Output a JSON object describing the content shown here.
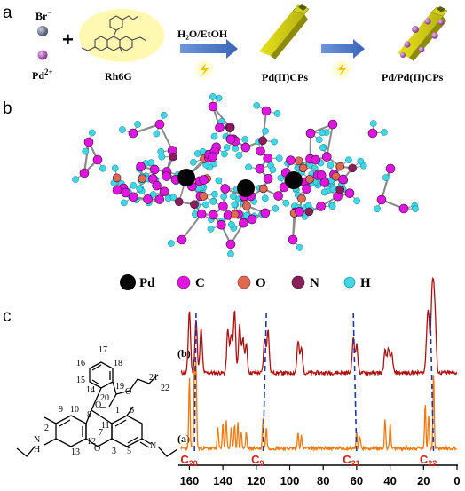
{
  "panels": {
    "a": {
      "letter": "a",
      "br_label": "Br",
      "br_charge": "−",
      "pd_label": "Pd",
      "pd_charge": "2+",
      "plus": "+",
      "rh6g_label": "Rh6G",
      "solvent_label": "H₂O/EtOH",
      "product1_label": "Pd(II)CPs",
      "product2_label": "Pd/Pd(II)CPs"
    },
    "b": {
      "letter": "b",
      "legend": [
        {
          "symbol": "Pd",
          "color": "#050505"
        },
        {
          "symbol": "C",
          "color": "#e016e0"
        },
        {
          "symbol": "O",
          "color": "#e06a50"
        },
        {
          "symbol": "N",
          "color": "#8a1e5a"
        },
        {
          "symbol": "H",
          "color": "#3fd6e6"
        }
      ]
    },
    "c": {
      "letter": "c",
      "atom_numbers": [
        "17",
        "16",
        "18",
        "15",
        "14",
        "19",
        "20",
        "21",
        "22",
        "10",
        "8",
        "9",
        "11",
        "1",
        "2",
        "12",
        "7",
        "6",
        "3",
        "13",
        "5",
        "4"
      ],
      "heteroatoms": {
        "nh": "H",
        "n_ring": "N",
        "nh_n": "N",
        "o_ring": "O",
        "o_carbonyl": "O",
        "o_ester": "O"
      },
      "trace_b_label": "(b)",
      "trace_a_label": "(a)",
      "x_ticks": [
        "160",
        "140",
        "120",
        "100",
        "80",
        "60",
        "40",
        "20",
        "0"
      ],
      "carbon_labels": [
        {
          "main": "C",
          "sub": "20"
        },
        {
          "main": "C",
          "sub": "9"
        },
        {
          "main": "C",
          "sub": "21"
        },
        {
          "main": "C",
          "sub": "22"
        }
      ]
    }
  },
  "chart_data": {
    "type": "line",
    "title": "",
    "xlabel": "",
    "ylabel": "",
    "x_reversed": true,
    "xlim": [
      165,
      0
    ],
    "series": [
      {
        "name": "(b)",
        "color": "#b01010",
        "peaks_ppm": [
          160,
          156,
          153,
          137,
          135,
          133,
          130,
          128,
          126,
          115,
          113,
          95,
          93,
          62,
          60,
          43,
          41,
          39,
          18,
          17,
          15,
          14,
          13
        ]
      },
      {
        "name": "(a)",
        "color": "#ee7a10",
        "peaks_ppm": [
          160,
          157,
          156,
          143,
          140,
          138,
          135,
          133,
          131,
          129,
          126,
          116,
          114,
          95,
          93,
          60,
          58,
          43,
          40,
          19,
          17,
          14
        ]
      }
    ],
    "assignments": [
      {
        "label": "C20",
        "ppm_a": 157,
        "ppm_b": 156
      },
      {
        "label": "C9",
        "ppm_a": 116,
        "ppm_b": 114
      },
      {
        "label": "C21",
        "ppm_a": 60,
        "ppm_b": 62
      },
      {
        "label": "C22",
        "ppm_a": 14,
        "ppm_b": 16
      }
    ]
  }
}
